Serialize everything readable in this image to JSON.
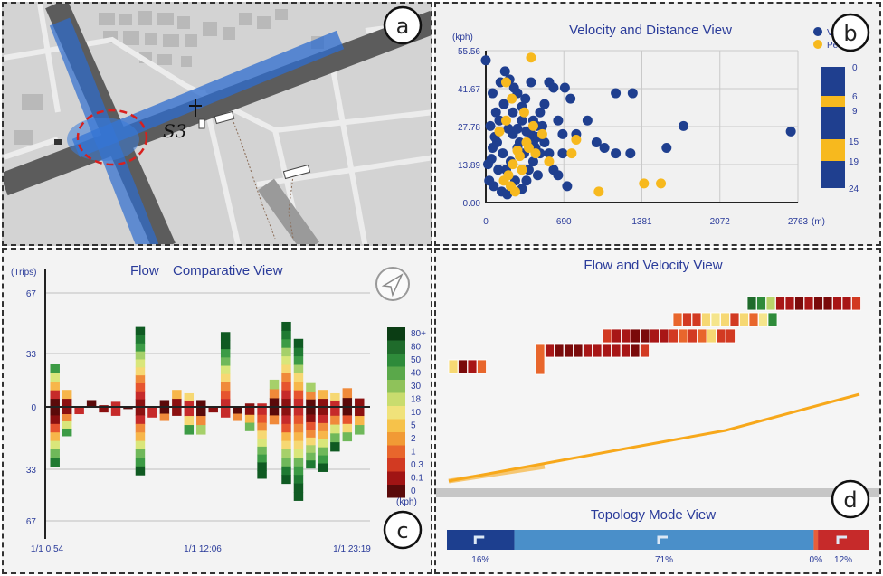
{
  "panels": {
    "a": {
      "letter": "a",
      "station_label": "S3"
    },
    "b": {
      "letter": "b",
      "title": "Velocity and Distance View",
      "y_unit": "(kph)",
      "x_unit": "(m)",
      "legend": [
        {
          "name": "Valley",
          "color": "#1f3f8f"
        },
        {
          "name": "Peak",
          "color": "#f7b91e"
        }
      ],
      "time_bar_labels": [
        "0",
        "6",
        "9",
        "15",
        "19",
        "24"
      ]
    },
    "c": {
      "letter": "c",
      "title_flow": "Flow",
      "title_rest": "Comparative View",
      "y_unit": "(Trips)",
      "legend_unit": "(kph)",
      "legend_labels": [
        "80+",
        "80",
        "50",
        "40",
        "30",
        "18",
        "10",
        "5",
        "2",
        "1",
        "0.3",
        "0.1",
        "0"
      ]
    },
    "d": {
      "letter": "d",
      "title": "Flow and Velocity View",
      "topology_title": "Topology Mode View",
      "topology": [
        {
          "pct": "16%",
          "color": "#1d3f8f",
          "frac": 0.16
        },
        {
          "pct": "71%",
          "color": "#4a8fc9",
          "frac": 0.71
        },
        {
          "pct": "0%",
          "color": "#e85f3a",
          "frac": 0.01
        },
        {
          "pct": "12%",
          "color": "#c62a2a",
          "frac": 0.12
        }
      ]
    }
  },
  "chart_data": [
    {
      "type": "scatter",
      "title": "Velocity and Distance View",
      "xlabel": "(m)",
      "ylabel": "(kph)",
      "xlim": [
        0,
        2763
      ],
      "ylim": [
        0,
        55.56
      ],
      "x_ticks": [
        "0",
        "690",
        "1381",
        "2072",
        "2763"
      ],
      "y_ticks": [
        "0.00",
        "13.89",
        "27.78",
        "41.67",
        "55.56"
      ],
      "series": [
        {
          "name": "Valley",
          "points": [
            [
              0,
              52
            ],
            [
              60,
              40
            ],
            [
              90,
              33
            ],
            [
              40,
              28
            ],
            [
              130,
              44
            ],
            [
              170,
              48
            ],
            [
              210,
              45
            ],
            [
              250,
              42
            ],
            [
              280,
              40
            ],
            [
              320,
              35
            ],
            [
              350,
              38
            ],
            [
              400,
              44
            ],
            [
              420,
              30
            ],
            [
              450,
              28
            ],
            [
              480,
              33
            ],
            [
              520,
              36
            ],
            [
              560,
              44
            ],
            [
              600,
              42
            ],
            [
              640,
              30
            ],
            [
              680,
              25
            ],
            [
              700,
              42
            ],
            [
              750,
              38
            ],
            [
              800,
              25
            ],
            [
              900,
              30
            ],
            [
              980,
              22
            ],
            [
              1150,
              40
            ],
            [
              1300,
              40
            ],
            [
              1050,
              20
            ],
            [
              1280,
              18
            ],
            [
              1150,
              18
            ],
            [
              1600,
              20
            ],
            [
              1750,
              28
            ],
            [
              2700,
              26
            ],
            [
              60,
              20
            ],
            [
              100,
              22
            ],
            [
              150,
              18
            ],
            [
              180,
              12
            ],
            [
              220,
              15
            ],
            [
              260,
              8
            ],
            [
              300,
              22
            ],
            [
              340,
              18
            ],
            [
              380,
              12
            ],
            [
              420,
              15
            ],
            [
              460,
              10
            ],
            [
              520,
              22
            ],
            [
              560,
              18
            ],
            [
              600,
              12
            ],
            [
              640,
              10
            ],
            [
              680,
              18
            ],
            [
              720,
              6
            ],
            [
              30,
              8
            ],
            [
              70,
              6
            ],
            [
              110,
              12
            ],
            [
              140,
              4
            ],
            [
              190,
              3
            ],
            [
              240,
              25
            ],
            [
              280,
              20
            ],
            [
              320,
              5
            ],
            [
              360,
              8
            ],
            [
              400,
              25
            ],
            [
              440,
              20
            ],
            [
              480,
              18
            ],
            [
              20,
              14
            ],
            [
              50,
              16
            ],
            [
              80,
              24
            ],
            [
              120,
              30
            ],
            [
              160,
              36
            ],
            [
              200,
              27
            ],
            [
              240,
              33
            ],
            [
              280,
              27
            ],
            [
              320,
              30
            ],
            [
              360,
              26
            ],
            [
              420,
              22
            ],
            [
              460,
              24
            ],
            [
              500,
              28
            ]
          ]
        },
        {
          "name": "Peak",
          "points": [
            [
              400,
              53
            ],
            [
              180,
              44
            ],
            [
              340,
              33
            ],
            [
              360,
              22
            ],
            [
              280,
              19
            ],
            [
              240,
              14
            ],
            [
              300,
              17
            ],
            [
              220,
              6
            ],
            [
              260,
              4
            ],
            [
              160,
              8
            ],
            [
              200,
              10
            ],
            [
              320,
              12
            ],
            [
              380,
              20
            ],
            [
              420,
              28
            ],
            [
              440,
              18
            ],
            [
              500,
              25
            ],
            [
              560,
              15
            ],
            [
              760,
              18
            ],
            [
              800,
              23
            ],
            [
              1000,
              4
            ],
            [
              1400,
              7
            ],
            [
              1550,
              7
            ],
            [
              180,
              30
            ],
            [
              230,
              38
            ],
            [
              120,
              26
            ]
          ]
        }
      ]
    },
    {
      "type": "bar",
      "title": "Flow Comparative View",
      "ylabel": "(Trips)",
      "ylim": [
        -67,
        67
      ],
      "y_ticks": [
        "67",
        "33",
        "0",
        "33",
        "67"
      ],
      "x_ticks": [
        "1/1 0:54",
        "1/1 12:06",
        "1/1 23:19"
      ],
      "series": [
        {
          "name": "positive",
          "values": [
            25,
            10,
            0,
            4,
            1,
            3,
            0,
            47,
            0,
            4,
            10,
            8,
            4,
            0,
            44,
            0,
            2,
            2,
            16,
            50,
            40,
            14,
            10,
            8,
            11,
            5
          ]
        },
        {
          "name": "negative",
          "values": [
            -35,
            -17,
            -4,
            0,
            -3,
            -5,
            -1,
            -40,
            -6,
            -8,
            -5,
            -16,
            -16,
            -3,
            -6,
            -8,
            -14,
            -42,
            -10,
            -45,
            -55,
            -36,
            -38,
            -26,
            -20,
            -16
          ]
        }
      ]
    },
    {
      "type": "heatmap",
      "title": "Flow and Velocity View",
      "rows": [
        {
          "segment": 0,
          "speeds": [
            4,
            0,
            1,
            3
          ]
        },
        {
          "segment": 1,
          "speeds": [
            3,
            1,
            0,
            0,
            0,
            1,
            1,
            1,
            1,
            1,
            0,
            2
          ]
        },
        {
          "segment": 2,
          "speeds": [
            2,
            1,
            1,
            0,
            0,
            1,
            1,
            2,
            3,
            2,
            3,
            4,
            2,
            2
          ]
        },
        {
          "segment": 3,
          "speeds": [
            3,
            2,
            2,
            4,
            5,
            4,
            2,
            4,
            3,
            5,
            7
          ]
        },
        {
          "segment": 4,
          "speeds": [
            8,
            7,
            6,
            1,
            1,
            0,
            1,
            0,
            0,
            1,
            1,
            2
          ]
        }
      ],
      "flow_line": {
        "start": [
          0,
          0
        ],
        "end": [
          1,
          1
        ]
      }
    }
  ]
}
